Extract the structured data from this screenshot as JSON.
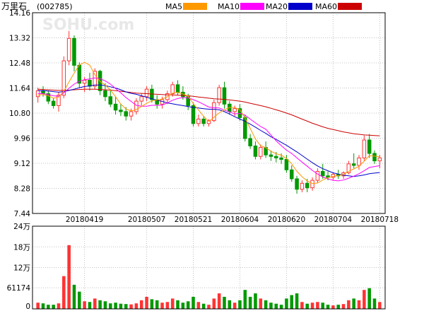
{
  "stock": {
    "name": "万里石",
    "code": "(002785)"
  },
  "watermark": "SOHU.com",
  "legend": [
    {
      "label": "MA5",
      "color": "#ff9900"
    },
    {
      "label": "MA10",
      "color": "#ff00ff"
    },
    {
      "label": "MA20",
      "color": "#0000cc"
    },
    {
      "label": "MA60",
      "color": "#cc0000"
    }
  ],
  "colors": {
    "up": "#ff3333",
    "down": "#009900",
    "grid": "#c0c0c0",
    "frame": "#000000"
  },
  "chart_data": [
    {
      "type": "candlestick",
      "title": "",
      "ylim": [
        7.44,
        14.16
      ],
      "ytick_labels": [
        "14.16",
        "13.32",
        "12.48",
        "11.64",
        "10.80",
        "9.96",
        "9.12",
        "8.28",
        "7.44"
      ],
      "xtick_labels": [
        "20180419",
        "20180507",
        "20180521",
        "20180604",
        "20180620",
        "20180704",
        "20180718"
      ],
      "xtick_index": [
        9,
        21,
        30,
        39,
        48,
        57,
        66
      ],
      "ohlc": [
        [
          11.35,
          11.65,
          11.15,
          11.55
        ],
        [
          11.55,
          11.7,
          11.35,
          11.45
        ],
        [
          11.45,
          11.55,
          11.1,
          11.2
        ],
        [
          11.2,
          11.3,
          10.95,
          11.05
        ],
        [
          11.05,
          11.5,
          10.85,
          11.4
        ],
        [
          11.4,
          12.7,
          11.3,
          12.55
        ],
        [
          12.55,
          13.55,
          12.4,
          13.3
        ],
        [
          13.3,
          13.4,
          12.2,
          12.4
        ],
        [
          12.4,
          12.5,
          11.65,
          11.8
        ],
        [
          11.8,
          12.0,
          11.5,
          11.9
        ],
        [
          11.9,
          12.15,
          11.55,
          11.7
        ],
        [
          11.7,
          12.3,
          11.6,
          12.2
        ],
        [
          12.2,
          12.25,
          11.4,
          11.55
        ],
        [
          11.55,
          11.8,
          11.2,
          11.35
        ],
        [
          11.35,
          11.6,
          11.0,
          11.1
        ],
        [
          11.1,
          11.35,
          10.75,
          10.9
        ],
        [
          10.9,
          11.1,
          10.7,
          10.85
        ],
        [
          10.85,
          11.0,
          10.55,
          10.7
        ],
        [
          10.7,
          10.95,
          10.55,
          10.85
        ],
        [
          10.85,
          11.3,
          10.75,
          11.2
        ],
        [
          11.2,
          11.45,
          11.05,
          11.35
        ],
        [
          11.35,
          11.7,
          11.2,
          11.6
        ],
        [
          11.6,
          11.75,
          11.15,
          11.25
        ],
        [
          11.25,
          11.4,
          10.95,
          11.1
        ],
        [
          11.1,
          11.35,
          10.95,
          11.25
        ],
        [
          11.25,
          11.55,
          11.1,
          11.45
        ],
        [
          11.45,
          11.85,
          11.35,
          11.75
        ],
        [
          11.75,
          11.9,
          11.4,
          11.5
        ],
        [
          11.5,
          11.7,
          11.25,
          11.35
        ],
        [
          11.35,
          11.45,
          10.9,
          11.05
        ],
        [
          11.05,
          11.15,
          10.35,
          10.45
        ],
        [
          10.45,
          10.75,
          10.35,
          10.6
        ],
        [
          10.6,
          10.7,
          10.35,
          10.45
        ],
        [
          10.45,
          10.6,
          10.35,
          10.55
        ],
        [
          10.55,
          11.25,
          10.5,
          11.15
        ],
        [
          11.15,
          11.75,
          11.05,
          11.65
        ],
        [
          11.65,
          11.85,
          10.95,
          11.1
        ],
        [
          11.1,
          11.2,
          10.75,
          10.85
        ],
        [
          10.85,
          11.05,
          10.7,
          10.95
        ],
        [
          10.95,
          11.1,
          10.55,
          10.65
        ],
        [
          10.65,
          10.75,
          9.85,
          9.95
        ],
        [
          9.95,
          10.1,
          9.6,
          9.7
        ],
        [
          9.7,
          9.85,
          9.25,
          9.35
        ],
        [
          9.35,
          9.75,
          9.25,
          9.65
        ],
        [
          9.65,
          9.85,
          9.3,
          9.4
        ],
        [
          9.4,
          9.55,
          9.2,
          9.35
        ],
        [
          9.35,
          9.5,
          9.15,
          9.3
        ],
        [
          9.3,
          9.45,
          9.1,
          9.25
        ],
        [
          9.25,
          9.4,
          8.8,
          8.9
        ],
        [
          8.9,
          9.05,
          8.5,
          8.6
        ],
        [
          8.6,
          8.7,
          8.1,
          8.25
        ],
        [
          8.25,
          8.55,
          8.15,
          8.45
        ],
        [
          8.45,
          8.6,
          8.15,
          8.3
        ],
        [
          8.3,
          8.65,
          8.2,
          8.55
        ],
        [
          8.55,
          8.95,
          8.45,
          8.85
        ],
        [
          8.85,
          9.1,
          8.6,
          8.7
        ],
        [
          8.7,
          8.85,
          8.55,
          8.65
        ],
        [
          8.65,
          8.8,
          8.55,
          8.75
        ],
        [
          8.75,
          8.9,
          8.6,
          8.7
        ],
        [
          8.7,
          8.85,
          8.6,
          8.8
        ],
        [
          8.8,
          9.2,
          8.75,
          9.1
        ],
        [
          9.1,
          9.45,
          8.95,
          9.05
        ],
        [
          9.05,
          9.4,
          8.9,
          9.3
        ],
        [
          9.3,
          10.05,
          9.2,
          9.9
        ],
        [
          9.9,
          10.1,
          9.3,
          9.45
        ],
        [
          9.45,
          9.55,
          9.1,
          9.2
        ],
        [
          9.2,
          9.4,
          8.95,
          9.3
        ]
      ],
      "ma5": [
        11.4,
        11.42,
        11.38,
        11.3,
        11.33,
        11.53,
        11.84,
        12.14,
        12.41,
        12.5,
        12.41,
        12.08,
        11.86,
        11.74,
        11.57,
        11.35,
        11.1,
        10.94,
        10.87,
        10.92,
        11.02,
        11.13,
        11.21,
        11.24,
        11.27,
        11.35,
        11.47,
        11.49,
        11.44,
        11.37,
        11.12,
        10.91,
        10.69,
        10.52,
        10.66,
        10.81,
        10.91,
        10.99,
        10.99,
        10.91,
        10.63,
        10.29,
        9.93,
        9.71,
        9.64,
        9.52,
        9.44,
        9.39,
        9.28,
        9.1,
        8.85,
        8.67,
        8.53,
        8.44,
        8.46,
        8.56,
        8.64,
        8.68,
        8.71,
        8.75,
        8.85,
        8.93,
        9.02,
        9.19,
        9.37,
        9.36,
        9.34
      ],
      "ma10": [
        11.45,
        11.45,
        11.42,
        11.38,
        11.36,
        11.48,
        11.63,
        11.77,
        11.87,
        11.92,
        11.94,
        11.98,
        11.95,
        11.88,
        11.77,
        11.62,
        11.48,
        11.32,
        11.19,
        11.06,
        11.03,
        11.03,
        11.06,
        11.06,
        11.07,
        11.14,
        11.23,
        11.29,
        11.32,
        11.31,
        11.25,
        11.18,
        11.09,
        11.0,
        10.98,
        10.97,
        10.9,
        10.84,
        10.77,
        10.79,
        10.73,
        10.6,
        10.47,
        10.35,
        10.26,
        10.07,
        9.87,
        9.71,
        9.56,
        9.45,
        9.3,
        9.16,
        9.02,
        8.88,
        8.76,
        8.66,
        8.6,
        8.55,
        8.53,
        8.56,
        8.62,
        8.69,
        8.77,
        8.87,
        8.98,
        9.01,
        9.04
      ],
      "ma20": [
        11.55,
        11.55,
        11.54,
        11.52,
        11.5,
        11.52,
        11.56,
        11.6,
        11.65,
        11.69,
        11.71,
        11.74,
        11.74,
        11.72,
        11.68,
        11.64,
        11.58,
        11.51,
        11.46,
        11.43,
        11.38,
        11.33,
        11.28,
        11.23,
        11.19,
        11.14,
        11.11,
        11.08,
        11.05,
        11.02,
        10.99,
        10.97,
        10.95,
        10.93,
        10.93,
        10.91,
        10.85,
        10.77,
        10.68,
        10.6,
        10.53,
        10.43,
        10.33,
        10.22,
        10.12,
        10.01,
        9.92,
        9.82,
        9.72,
        9.61,
        9.5,
        9.38,
        9.26,
        9.14,
        9.03,
        8.94,
        8.87,
        8.8,
        8.76,
        8.72,
        8.7,
        8.68,
        8.7,
        8.73,
        8.77,
        8.79,
        8.81
      ],
      "ma60": [
        11.6,
        11.59,
        11.58,
        11.57,
        11.56,
        11.56,
        11.57,
        11.58,
        11.59,
        11.6,
        11.6,
        11.6,
        11.59,
        11.58,
        11.57,
        11.55,
        11.53,
        11.51,
        11.49,
        11.47,
        11.46,
        11.45,
        11.44,
        11.43,
        11.42,
        11.41,
        11.41,
        11.4,
        11.39,
        11.38,
        11.36,
        11.34,
        11.32,
        11.3,
        11.28,
        11.27,
        11.26,
        11.24,
        11.22,
        11.2,
        11.17,
        11.13,
        11.09,
        11.05,
        11.01,
        10.96,
        10.91,
        10.86,
        10.8,
        10.74,
        10.67,
        10.6,
        10.53,
        10.46,
        10.4,
        10.34,
        10.29,
        10.25,
        10.21,
        10.17,
        10.14,
        10.11,
        10.09,
        10.07,
        10.06,
        10.05,
        10.04
      ]
    },
    {
      "type": "bar",
      "title": "",
      "ylim": [
        0,
        240000
      ],
      "ytick_labels": [
        "24万",
        "18万",
        "12万",
        "61174",
        "0"
      ],
      "ytick_values": [
        240000,
        180000,
        120000,
        61174,
        0
      ],
      "volume": [
        18000,
        16000,
        12000,
        12000,
        16000,
        95000,
        185000,
        70000,
        50000,
        22000,
        20000,
        30000,
        25000,
        22000,
        16000,
        18000,
        15000,
        14000,
        13000,
        16000,
        25000,
        35000,
        28000,
        25000,
        18000,
        20000,
        30000,
        25000,
        18000,
        22000,
        35000,
        20000,
        15000,
        12000,
        30000,
        45000,
        35000,
        25000,
        18000,
        25000,
        55000,
        35000,
        45000,
        30000,
        25000,
        18000,
        15000,
        12000,
        30000,
        40000,
        45000,
        20000,
        15000,
        18000,
        20000,
        18000,
        12000,
        10000,
        12000,
        14000,
        25000,
        30000,
        25000,
        55000,
        60000,
        30000,
        20000
      ]
    }
  ]
}
